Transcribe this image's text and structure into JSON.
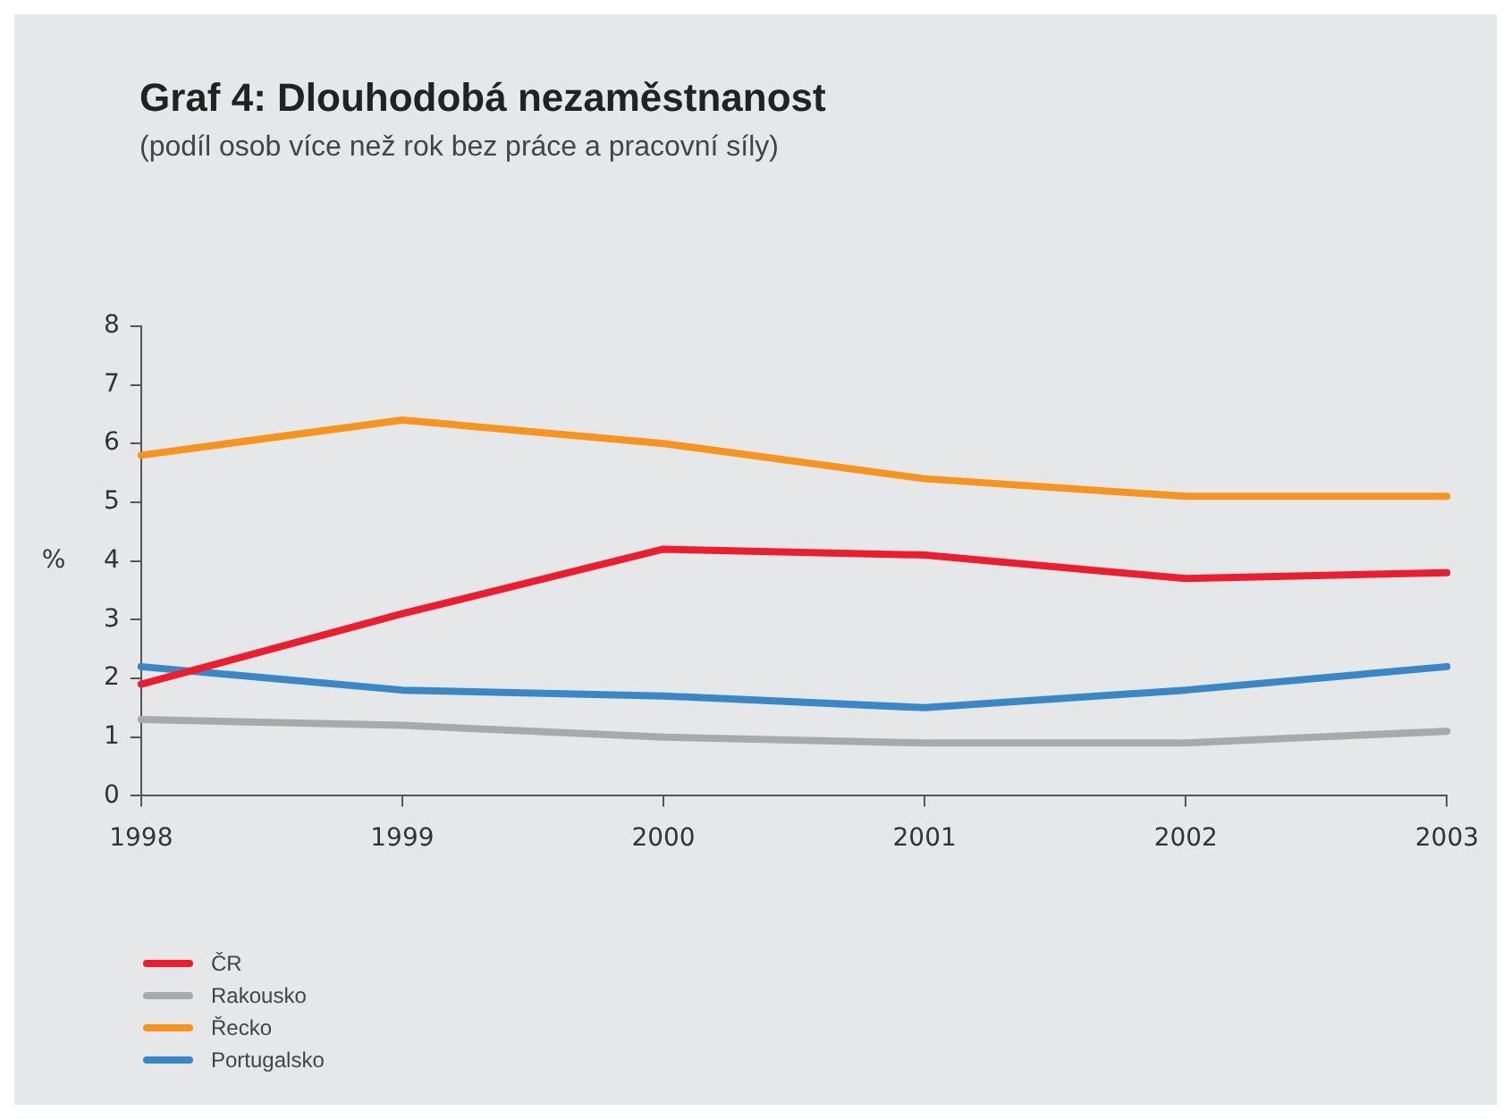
{
  "chart_data": {
    "type": "line",
    "title": "Graf 4: Dlouhodobá nezaměstnanost",
    "subtitle": "(podíl osob více než rok bez práce a pracovní síly)",
    "ylabel": "%",
    "categories": [
      "1998",
      "1999",
      "2000",
      "2001",
      "2002",
      "2003"
    ],
    "series": [
      {
        "name": "ČR",
        "color": "#ed1c2e",
        "values": [
          1.9,
          3.1,
          4.2,
          4.1,
          3.7,
          3.8
        ]
      },
      {
        "name": "Rakousko",
        "color": "#a7a9ac",
        "values": [
          1.3,
          1.2,
          1.0,
          0.9,
          0.9,
          1.1
        ]
      },
      {
        "name": "Řecko",
        "color": "#f7941d",
        "values": [
          5.8,
          6.4,
          6.0,
          5.4,
          5.1,
          5.1
        ]
      },
      {
        "name": "Portugalsko",
        "color": "#3a87c8",
        "values": [
          2.2,
          1.8,
          1.7,
          1.5,
          1.8,
          2.2
        ]
      }
    ],
    "ylim": [
      0,
      8
    ],
    "yticks": [
      0,
      1,
      2,
      3,
      4,
      5,
      6,
      7,
      8
    ],
    "grid": false,
    "legend": "bottom left",
    "marker": "none",
    "line_style": "solid"
  }
}
